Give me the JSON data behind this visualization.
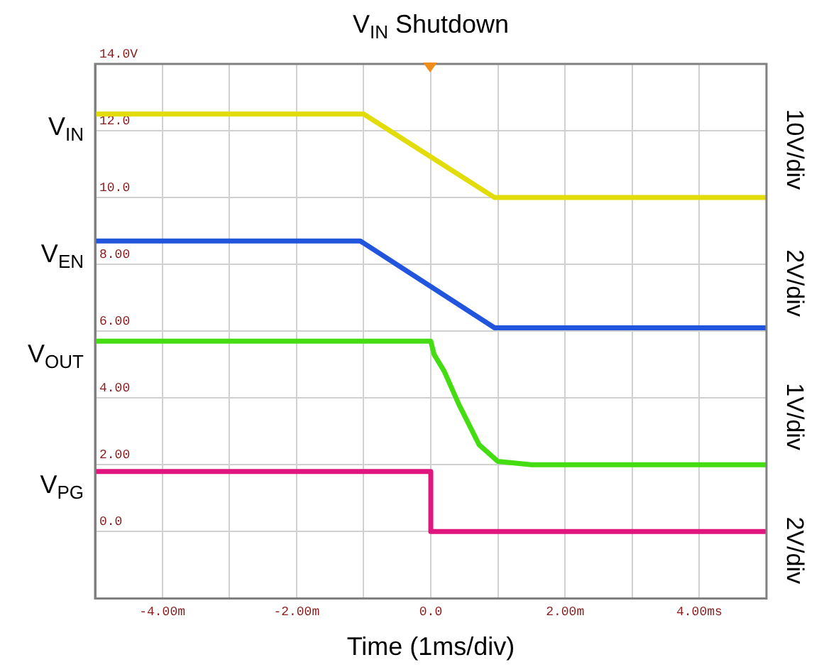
{
  "chart_data": {
    "type": "line",
    "title": "V$_{IN}$ Shutdown",
    "xlabel": "Time (1ms/div)",
    "xlim": [
      -5,
      5
    ],
    "xticks": [
      {
        "value": -5,
        "label": null
      },
      {
        "value": -4,
        "label": "-4.00m"
      },
      {
        "value": -3,
        "label": null
      },
      {
        "value": -2,
        "label": "-2.00m"
      },
      {
        "value": -1,
        "label": null
      },
      {
        "value": 0,
        "label": "0.0"
      },
      {
        "value": 1,
        "label": null
      },
      {
        "value": 2,
        "label": "2.00m"
      },
      {
        "value": 3,
        "label": null
      },
      {
        "value": 4,
        "label": "4.00ms"
      },
      {
        "value": 5,
        "label": null
      }
    ],
    "ylim": [
      -2,
      14
    ],
    "yticks": [
      {
        "value": -2,
        "label": null
      },
      {
        "value": 0,
        "label": "0.0"
      },
      {
        "value": 2,
        "label": "2.00"
      },
      {
        "value": 4,
        "label": "4.00"
      },
      {
        "value": 6,
        "label": "6.00"
      },
      {
        "value": 8,
        "label": "8.00"
      },
      {
        "value": 10,
        "label": "10.0"
      },
      {
        "value": 12,
        "label": "12.0"
      },
      {
        "value": 14,
        "label": "14.0V"
      }
    ],
    "grid": true,
    "legend": false,
    "marker": "none",
    "line_style": "solid",
    "annotations": [
      "10V/div",
      "2V/div",
      "1V/div",
      "2V/div"
    ],
    "series": [
      {
        "name": "V$_{IN}$",
        "color": "#e3dc0b",
        "x": [
          -5,
          -1,
          0.95,
          5
        ],
        "values": [
          12.5,
          12.5,
          10,
          10
        ]
      },
      {
        "name": "V$_{EN}$",
        "color": "#2255dd",
        "x": [
          -5,
          -1.05,
          0.95,
          5
        ],
        "values": [
          8.7,
          8.7,
          6.1,
          6.1
        ]
      },
      {
        "name": "V$_{OUT}$",
        "color": "#44dd11",
        "x": [
          -5,
          0,
          0.05,
          0.2,
          0.42,
          0.72,
          1,
          1.5,
          5
        ],
        "values": [
          5.7,
          5.7,
          5.3,
          4.8,
          3.8,
          2.6,
          2.1,
          2,
          2
        ]
      },
      {
        "name": "V$_{PG}$",
        "color": "#e0167e",
        "x": [
          -5,
          0,
          0,
          5
        ],
        "values": [
          1.8,
          1.8,
          0,
          0
        ]
      }
    ]
  }
}
